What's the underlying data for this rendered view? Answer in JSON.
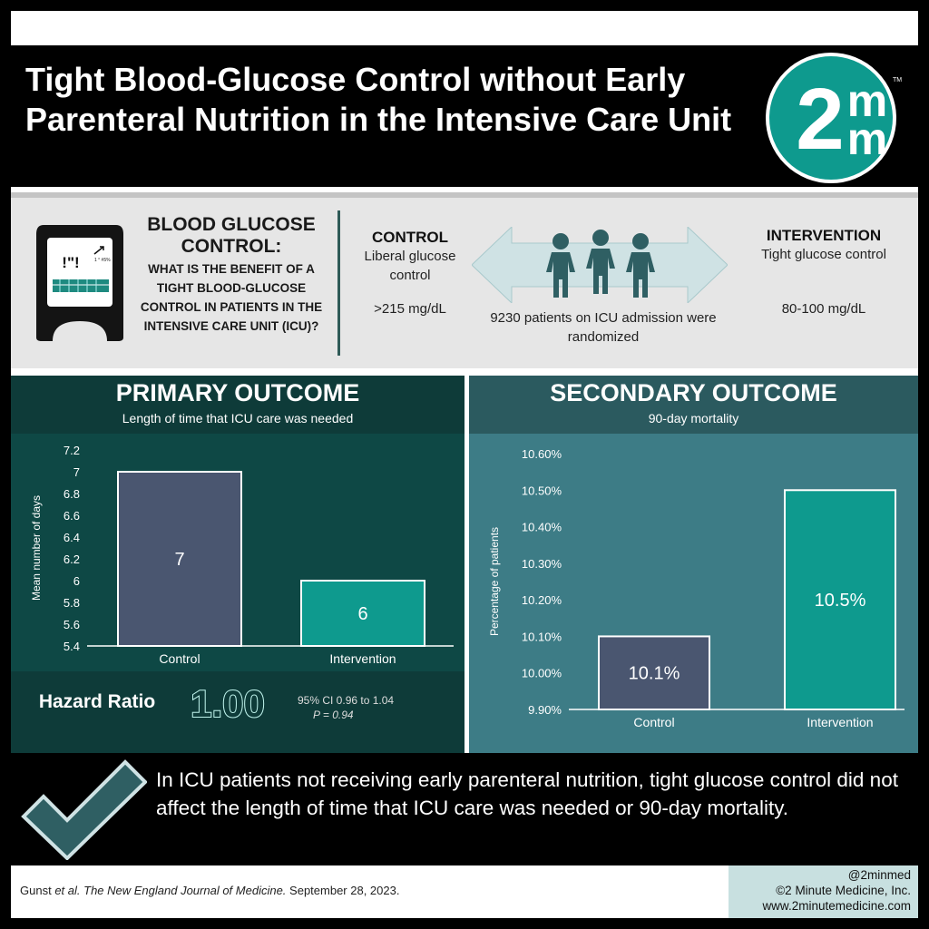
{
  "title": "Tight Blood-Glucose Control without Early Parenteral Nutrition in the Intensive Care Unit",
  "logo": {
    "text_main": "2",
    "text_top": "m",
    "text_bottom": "m",
    "tm": "TM",
    "color": "#0e9a8e"
  },
  "question": {
    "title": "BLOOD GLUCOSE CONTROL:",
    "body": "WHAT IS THE BENEFIT OF A TIGHT BLOOD-GLUCOSE CONTROL IN PATIENTS IN THE INTENSIVE CARE UNIT (ICU)?"
  },
  "device": {
    "screen_text": "!\"!",
    "mini_text": "1 ° #5%"
  },
  "control": {
    "label": "CONTROL",
    "desc": "Liberal glucose control",
    "value": ">215 mg/dL"
  },
  "intervention": {
    "label": "INTERVENTION",
    "desc": "Tight glucose control",
    "value": "80-100 mg/dL"
  },
  "randomized_text": "9230 patients on ICU admission were randomized",
  "primary": {
    "title": "PRIMARY OUTCOME",
    "subtitle": "Length of time that ICU care was needed",
    "hazard_label": "Hazard Ratio",
    "hazard_value": "1.00",
    "ci": "95% CI 0.96 to 1.04",
    "p": "P = 0.94"
  },
  "secondary": {
    "title": "SECONDARY OUTCOME",
    "subtitle": "90-day mortality"
  },
  "chart_data": [
    {
      "type": "bar",
      "categories": [
        "Control",
        "Intervention"
      ],
      "values": [
        7,
        6
      ],
      "data_labels": [
        "7",
        "6"
      ],
      "ylabel": "Mean number of days",
      "ylim": [
        5.4,
        7.2
      ],
      "yticks": [
        "5.4",
        "5.6",
        "5.8",
        "6",
        "6.2",
        "6.4",
        "6.6",
        "6.8",
        "7",
        "7.2"
      ],
      "colors": [
        "#4a5670",
        "#0e9a8e"
      ]
    },
    {
      "type": "bar",
      "categories": [
        "Control",
        "Intervention"
      ],
      "values": [
        10.1,
        10.5
      ],
      "data_labels": [
        "10.1%",
        "10.5%"
      ],
      "ylabel": "Percentage of patients",
      "ylim": [
        9.9,
        10.6
      ],
      "yticks": [
        "9.90%",
        "10.00%",
        "10.10%",
        "10.20%",
        "10.30%",
        "10.40%",
        "10.50%",
        "10.60%"
      ],
      "colors": [
        "#4a5670",
        "#0e9a8e"
      ]
    }
  ],
  "conclusion": "In ICU patients not receiving early parenteral nutrition, tight glucose control did not affect the length of time that ICU care was needed or 90-day mortality.",
  "citation": {
    "authors": "Gunst",
    "etal": "et al.",
    "journal": "The New England Journal of Medicine.",
    "date": "September 28, 2023."
  },
  "footer": {
    "handle": "@2minmed",
    "copyright": "©2 Minute Medicine, Inc.",
    "url": "www.2minutemedicine.com"
  }
}
